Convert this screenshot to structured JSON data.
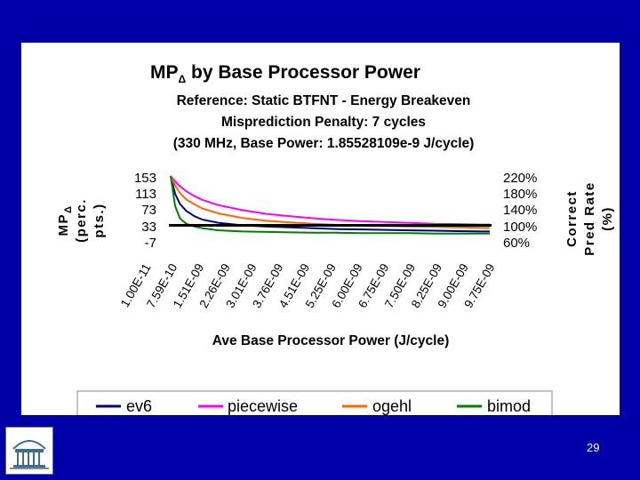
{
  "slide": {
    "page_number": "29",
    "colors": {
      "background": "#0000a8",
      "panel": "#ffffff"
    }
  },
  "logo": {
    "icon": "rotunda-logo-icon"
  },
  "chart_data": {
    "type": "line",
    "title": "MP",
    "title_subscript": "Δ",
    "title_suffix": " by Base Processor Power",
    "subtitle_lines": [
      "Reference: Static BTFNT - Energy Breakeven",
      "Misprediction Penalty: 7 cycles",
      "(330 MHz, Base Power: 1.85528109e-9 J/cycle)"
    ],
    "xlabel": "Ave Base Processor Power (J/cycle)",
    "ylabel_left_lines": [
      "MP",
      "(perc.",
      "pts.)"
    ],
    "ylabel_left_subscript": "Δ",
    "ylabel_right_lines": [
      "Correct",
      "Pred Rate",
      "(%)"
    ],
    "x_tick_labels": [
      "1.00E-11",
      "7.59E-10",
      "1.51E-09",
      "2.26E-09",
      "3.01E-09",
      "3.76E-09",
      "4.51E-09",
      "5.25E-09",
      "6.00E-09",
      "6.75E-09",
      "7.50E-09",
      "8.25E-09",
      "9.00E-09",
      "9.75E-09"
    ],
    "y_left_ticks": [
      "153",
      "113",
      "73",
      "33",
      "-7"
    ],
    "y_left_range": [
      -7,
      153
    ],
    "y_right_ticks": [
      "220%",
      "180%",
      "140%",
      "100%",
      "60%"
    ],
    "y_right_range": [
      60,
      220
    ],
    "reference_line": {
      "axis": "right",
      "value": 100,
      "color": "#000000"
    },
    "x_range": [
      1e-11,
      1e-08
    ],
    "series": [
      {
        "name": "ev6",
        "color": "#000080",
        "x": [
          1e-11,
          1.5e-10,
          3e-10,
          5e-10,
          7.59e-10,
          1e-09,
          1.51e-09,
          2.26e-09,
          3.01e-09,
          3.76e-09,
          4.51e-09,
          5.25e-09,
          6e-09,
          6.75e-09,
          7.5e-09,
          8.25e-09,
          9e-09,
          9.75e-09,
          1e-08
        ],
        "y": [
          153,
          110,
          85,
          68,
          55,
          47,
          39,
          33,
          30,
          28,
          26,
          24,
          23,
          22,
          21,
          20,
          19,
          18,
          18
        ]
      },
      {
        "name": "piecewise",
        "color": "#ff00ff",
        "x": [
          1e-11,
          1.5e-10,
          3e-10,
          5e-10,
          7.59e-10,
          1e-09,
          1.51e-09,
          2.26e-09,
          3.01e-09,
          3.76e-09,
          4.51e-09,
          5.25e-09,
          6e-09,
          6.75e-09,
          7.5e-09,
          8.25e-09,
          9e-09,
          9.75e-09,
          1e-08
        ],
        "y": [
          153,
          140,
          128,
          116,
          104,
          95,
          82,
          70,
          61,
          55,
          50,
          46,
          43,
          41,
          39,
          37,
          36,
          35,
          35
        ]
      },
      {
        "name": "ogehl",
        "color": "#ff6600",
        "x": [
          1e-11,
          1.5e-10,
          3e-10,
          5e-10,
          7.59e-10,
          1e-09,
          1.51e-09,
          2.26e-09,
          3.01e-09,
          3.76e-09,
          4.51e-09,
          5.25e-09,
          6e-09,
          6.75e-09,
          7.5e-09,
          8.25e-09,
          9e-09,
          9.75e-09,
          1e-08
        ],
        "y": [
          153,
          130,
          112,
          96,
          84,
          74,
          62,
          51,
          44,
          40,
          37,
          34,
          32,
          31,
          30,
          29,
          28,
          27,
          27
        ]
      },
      {
        "name": "bimod",
        "color": "#008000",
        "x": [
          1e-11,
          1.5e-10,
          3e-10,
          5e-10,
          7.59e-10,
          1e-09,
          1.51e-09,
          2.26e-09,
          3.01e-09,
          3.76e-09,
          4.51e-09,
          5.25e-09,
          6e-09,
          6.75e-09,
          7.5e-09,
          8.25e-09,
          9e-09,
          9.75e-09,
          1e-08
        ],
        "y": [
          153,
          80,
          50,
          37,
          30,
          26,
          21,
          18,
          17,
          16,
          15,
          15,
          14,
          14,
          14,
          13,
          13,
          13,
          13
        ]
      }
    ],
    "legend": {
      "position": "bottom"
    },
    "grid": false
  }
}
